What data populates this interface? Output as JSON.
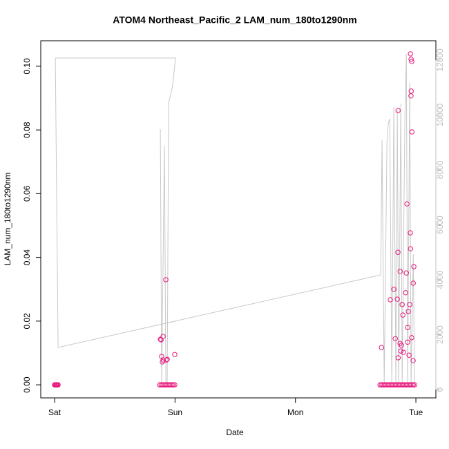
{
  "chart_data": {
    "type": "scatter",
    "title": "ATOM4 Northeast_Pacific_2 LAM_num_180to1290nm",
    "xlabel": "Date",
    "ylabel": "LAM_num_180to1290nm",
    "xlim": [
      -0.115,
      3.166
    ],
    "xticks": [
      {
        "value": 0,
        "label": "Sat"
      },
      {
        "value": 1,
        "label": "Sun"
      },
      {
        "value": 2,
        "label": "Mon"
      },
      {
        "value": 3,
        "label": "Tue"
      }
    ],
    "ylim": [
      -0.0041,
      0.108
    ],
    "yticks": [
      {
        "value": 0,
        "label": "0.00"
      },
      0.02,
      0.04,
      0.06,
      0.08,
      {
        "value": 0.1,
        "label": "0.10"
      }
    ],
    "y2lim": [
      -302,
      12704
    ],
    "y2ticks": [
      0,
      2000,
      4000,
      6000,
      8000,
      10000,
      12000
    ],
    "y2color": "#c0c0c0",
    "series": [
      {
        "type": "line",
        "axis": "y2",
        "color": "#c8c8c8",
        "x": [
          0.878,
          0.889,
          0.912,
          0.924,
          0.935,
          0.947,
          0.97,
          0.981,
          1.004,
          0.006,
          0.029,
          2.708,
          2.719,
          2.737,
          2.76,
          2.771,
          2.783,
          2.8,
          2.817,
          2.834,
          2.846,
          2.857,
          2.875,
          2.886,
          2.909,
          2.921,
          2.932,
          2.949,
          2.96,
          2.978,
          2.989
        ],
        "values": [
          9484,
          200,
          8881,
          200,
          200,
          10465,
          10843,
          11120,
          12075,
          12075,
          1535,
          4176,
          9082,
          200,
          9031,
          9711,
          9862,
          200,
          10289,
          200,
          10164,
          200,
          10415,
          200,
          9962,
          12226,
          200,
          11170,
          200,
          4931,
          200
        ]
      },
      {
        "type": "scatter",
        "axis": "y",
        "color": "#e8157a",
        "x": [
          0.878,
          0.884,
          0.901,
          0.889,
          0.901,
          0.895,
          0.924,
          0.929,
          0.935,
          0.998,
          2.714,
          2.788,
          2.817,
          2.829,
          2.846,
          2.851,
          2.852,
          2.853,
          2.869,
          2.868,
          2.875,
          2.88,
          2.886,
          2.892,
          2.897,
          2.915,
          2.921,
          2.926,
          2.932,
          2.931,
          2.937,
          2.943,
          2.949,
          2.955,
          2.954,
          2.956,
          2.96,
          2.966,
          2.961,
          2.959,
          2.967,
          2.965,
          2.978,
          2.983,
          2.977,
          0.0,
          0.006,
          0.012,
          0.017,
          0.023,
          0.029,
          0.872,
          0.884,
          0.895,
          0.907,
          0.918,
          0.93,
          0.941,
          0.953,
          0.964,
          0.976,
          0.987,
          0.998,
          2.702,
          2.714,
          2.725,
          2.737,
          2.748,
          2.76,
          2.771,
          2.783,
          2.794,
          2.806,
          2.817,
          2.829,
          2.84,
          2.852,
          2.863,
          2.875,
          2.886,
          2.898,
          2.909,
          2.921,
          2.932,
          2.944,
          2.955,
          2.967,
          2.978,
          2.99
        ],
        "values": [
          0.0143,
          0.0141,
          0.0152,
          0.0089,
          0.0078,
          0.0072,
          0.033,
          0.0078,
          0.008,
          0.0095,
          0.0117,
          0.0267,
          0.03,
          0.0145,
          0.0269,
          0.0416,
          0.0861,
          0.0085,
          0.0356,
          0.013,
          0.0106,
          0.0124,
          0.0252,
          0.0219,
          0.0102,
          0.0289,
          0.0351,
          0.0568,
          0.018,
          0.0134,
          0.023,
          0.0093,
          0.0252,
          0.1039,
          0.0477,
          0.0427,
          0.1022,
          0.1015,
          0.0922,
          0.0907,
          0.0794,
          0.0148,
          0.0319,
          0.0371,
          0.0076,
          0,
          0,
          0,
          0,
          0,
          0,
          0,
          0,
          0,
          0,
          0,
          0,
          0,
          0,
          0,
          0,
          0,
          0,
          0,
          0,
          0,
          0,
          0,
          0,
          0,
          0,
          0,
          0,
          0,
          0,
          0,
          0,
          0,
          0,
          0,
          0,
          0,
          0,
          0,
          0,
          0,
          0,
          0,
          0
        ]
      }
    ]
  }
}
